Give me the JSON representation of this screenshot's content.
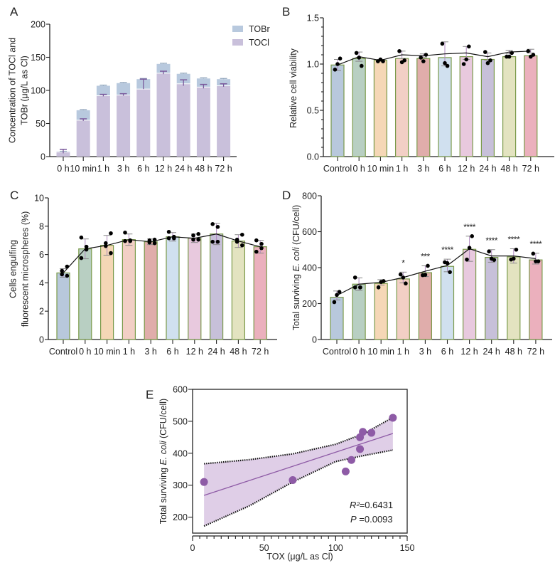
{
  "chart_data": [
    {
      "id": "A",
      "panel_label": "A",
      "type": "bar",
      "stacked": true,
      "categories": [
        "0 h",
        "10 min",
        "1 h",
        "3 h",
        "6 h",
        "12 h",
        "24 h",
        "48 h",
        "72 h"
      ],
      "series": [
        {
          "name": "TOCl",
          "values": [
            7,
            55,
            92,
            93,
            102,
            126,
            110,
            105,
            107
          ],
          "err": [
            4,
            2,
            2,
            2,
            15,
            3,
            6,
            4,
            3
          ],
          "color": "#c9c0db"
        },
        {
          "name": "TOBr",
          "values": [
            1,
            15,
            15,
            18,
            15,
            14,
            15,
            13,
            10
          ],
          "err": [
            0,
            1,
            1,
            1,
            1,
            1,
            1,
            1,
            1
          ],
          "color": "#b8c9de"
        }
      ],
      "legend": [
        "TOBr",
        "TOCl"
      ],
      "legend_position": "top-right",
      "ylabel_lines": [
        "Concentration of TOCl and",
        "TOBr (μg/L as Cl)"
      ],
      "ylim": [
        0,
        200
      ],
      "yticks": [
        0,
        50,
        100,
        150,
        200
      ],
      "error_color": "#7b5a9c"
    },
    {
      "id": "B",
      "panel_label": "B",
      "type": "bar",
      "categories": [
        "Control",
        "0 h",
        "10 min",
        "1 h",
        "3 h",
        "6 h",
        "12 h",
        "24 h",
        "48 h",
        "72 h"
      ],
      "values": [
        0.99,
        1.06,
        1.04,
        1.06,
        1.06,
        1.07,
        1.08,
        1.05,
        1.08,
        1.09
      ],
      "mean_line": [
        0.99,
        1.08,
        1.04,
        1.1,
        1.09,
        1.11,
        1.12,
        1.08,
        1.13,
        1.14
      ],
      "err": [
        0.06,
        0.05,
        0.01,
        0.04,
        0.02,
        0.13,
        0.07,
        0.04,
        0.02,
        0.02
      ],
      "points": [
        [
          1.06,
          1.0,
          0.94
        ],
        [
          1.12,
          1.07,
          0.98
        ],
        [
          1.03,
          1.05,
          1.03
        ],
        [
          1.14,
          1.02,
          1.04
        ],
        [
          1.1,
          1.03,
          1.07
        ],
        [
          1.22,
          1.01,
          0.98
        ],
        [
          1.19,
          1.05,
          1.0
        ],
        [
          1.13,
          1.01,
          1.04
        ],
        [
          1.12,
          1.08,
          1.08
        ],
        [
          1.14,
          1.08,
          1.1
        ]
      ],
      "ylabel": "Relative cell viability",
      "ylim": [
        0,
        1.5
      ],
      "yticks": [
        0.0,
        0.5,
        1.0,
        1.5
      ],
      "ytick_labels": [
        "0.0",
        "0.5",
        "1.0",
        "1.5"
      ],
      "minor_step": 0.1
    },
    {
      "id": "C",
      "panel_label": "C",
      "type": "bar",
      "categories": [
        "Control",
        "0 h",
        "10 min",
        "1 h",
        "3 h",
        "6 h",
        "12 h",
        "24 h",
        "48 h",
        "72 h"
      ],
      "values": [
        4.7,
        6.4,
        6.65,
        7.05,
        6.9,
        7.25,
        7.15,
        7.45,
        6.95,
        6.55
      ],
      "mean_line": [
        4.7,
        6.4,
        6.65,
        7.05,
        6.9,
        7.25,
        7.15,
        7.45,
        6.95,
        6.55
      ],
      "err": [
        0.3,
        0.7,
        0.7,
        0.4,
        0.2,
        0.3,
        0.3,
        0.75,
        0.45,
        0.45
      ],
      "points": [
        [
          5.15,
          4.85,
          4.6,
          4.5
        ],
        [
          7.2,
          6.55,
          6.35,
          5.75
        ],
        [
          7.5,
          6.8,
          6.6,
          6.1
        ],
        [
          7.55,
          7.0,
          6.95,
          6.95
        ],
        [
          7.05,
          7.0,
          6.85,
          6.8
        ],
        [
          7.6,
          7.25,
          7.15,
          7.15
        ],
        [
          7.45,
          7.35,
          7.05,
          7.05
        ],
        [
          8.15,
          7.95,
          6.9,
          6.9
        ],
        [
          7.4,
          7.05,
          6.9,
          6.65
        ],
        [
          7.0,
          6.75,
          6.45,
          6.2
        ]
      ],
      "ylabel_lines": [
        "Cells engulfing",
        "fluorescent microspheres (%)"
      ],
      "ylim": [
        0,
        10
      ],
      "yticks": [
        0,
        2,
        4,
        6,
        8,
        10
      ]
    },
    {
      "id": "D",
      "panel_label": "D",
      "type": "bar",
      "categories": [
        "Control",
        "0 h",
        "10 min",
        "1 h",
        "3 h",
        "6 h",
        "12 h",
        "24 h",
        "48 h",
        "72 h"
      ],
      "values": [
        235,
        308,
        312,
        337,
        372,
        407,
        502,
        457,
        460,
        443
      ],
      "mean_line": [
        245,
        308,
        318,
        345,
        380,
        412,
        505,
        465,
        465,
        450
      ],
      "err": [
        25,
        35,
        15,
        30,
        30,
        35,
        70,
        35,
        40,
        30
      ],
      "points": [
        [
          265,
          248,
          208
        ],
        [
          345,
          290,
          290,
          290
        ],
        [
          325,
          320,
          290
        ],
        [
          362,
          345,
          312
        ],
        [
          410,
          360,
          358
        ],
        [
          430,
          425,
          375
        ],
        [
          575,
          510,
          445
        ],
        [
          490,
          450,
          443
        ],
        [
          500,
          450,
          445
        ],
        [
          478,
          435,
          435
        ]
      ],
      "significance": [
        "",
        "",
        "",
        "*",
        "***",
        "****",
        "****",
        "****",
        "****",
        "****"
      ],
      "ylabel_parts": [
        "Total surviving ",
        "E. coli",
        " (CFU/cell)"
      ],
      "ylim": [
        0,
        800
      ],
      "yticks": [
        0,
        200,
        400,
        600,
        800
      ]
    },
    {
      "id": "E",
      "panel_label": "E",
      "type": "scatter",
      "points": [
        {
          "x": 8,
          "y": 310
        },
        {
          "x": 70,
          "y": 316
        },
        {
          "x": 107,
          "y": 343
        },
        {
          "x": 111,
          "y": 379
        },
        {
          "x": 117,
          "y": 413
        },
        {
          "x": 117,
          "y": 450
        },
        {
          "x": 119,
          "y": 467
        },
        {
          "x": 125,
          "y": 464
        },
        {
          "x": 140,
          "y": 511
        }
      ],
      "regression": {
        "x": [
          8,
          140
        ],
        "y": [
          268,
          462
        ]
      },
      "ci_upper": {
        "x": [
          8,
          40,
          70,
          100,
          120,
          140
        ],
        "y": [
          367,
          380,
          398,
          428,
          462,
          512
        ]
      },
      "ci_lower": {
        "x": [
          8,
          40,
          70,
          100,
          120,
          140
        ],
        "y": [
          172,
          236,
          310,
          374,
          393,
          410
        ]
      },
      "xlabel": "TOX (μg/L as Cl)",
      "ylabel_parts": [
        "Total surviving ",
        "E. coli",
        " (CFU/cell)"
      ],
      "xlim": [
        0,
        150
      ],
      "ylim": [
        150,
        600
      ],
      "xticks": [
        0,
        50,
        100,
        150
      ],
      "x_minor_step": 5,
      "yticks": [
        200,
        300,
        400,
        500,
        600
      ],
      "r2_label": "R²",
      "r2_value": "=0.6431",
      "p_label": "P",
      "p_value": " =0.0093",
      "color": "#8e5ba6",
      "band_color": "#d9c6e3"
    }
  ],
  "bar_colors": [
    "#b8c8dc",
    "#b8cfc2",
    "#f5d7b6",
    "#f2cfc5",
    "#e0adab",
    "#d0e0ef",
    "#e8c9de",
    "#c7c0d9",
    "#e3e3c0",
    "#ebb0bd"
  ],
  "bar_border_color": "#7a9a4a"
}
